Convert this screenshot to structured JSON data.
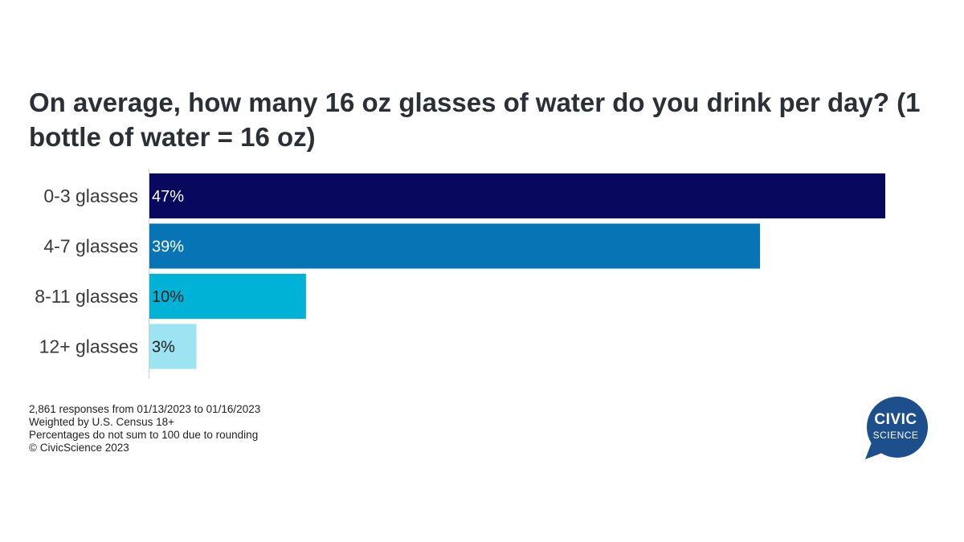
{
  "chart_data": {
    "type": "bar",
    "orientation": "horizontal",
    "title": "On average, how many 16 oz glasses of water do you drink per day? (1 bottle of water = 16 oz)",
    "categories": [
      "0-3 glasses",
      "4-7 glasses",
      "8-11 glasses",
      "12+ glasses"
    ],
    "values": [
      47,
      39,
      10,
      3
    ],
    "value_labels": [
      "47%",
      "39%",
      "10%",
      "3%"
    ],
    "bar_colors": [
      "#07085e",
      "#0775b5",
      "#00b2d6",
      "#9de3f2"
    ],
    "label_colors": [
      "#ffffff",
      "#ffffff",
      "#1a1a1a",
      "#1a1a1a"
    ],
    "xlim": [
      0,
      47
    ],
    "unit": "%",
    "legend": "none",
    "grid": false
  },
  "notes": [
    "2,861 responses from 01/13/2023 to 01/16/2023",
    "Weighted by U.S. Census 18+",
    "Percentages do not sum to 100 due to rounding",
    "© CivicScience 2023"
  ],
  "logo": {
    "line1": "CIVIC",
    "line2": "SCIENCE",
    "color": "#1d4f8c"
  }
}
